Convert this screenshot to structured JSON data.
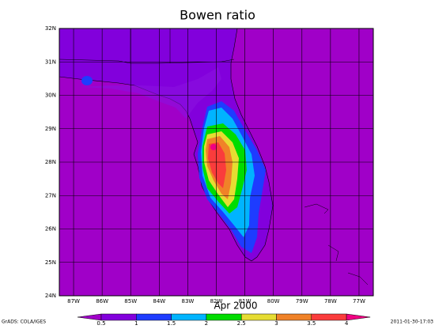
{
  "title": "Bowen ratio",
  "time_label": "Apr 2000",
  "credit": "GrADS: COLA/IGES",
  "timestamp": "2011-01-30-17:03",
  "map": {
    "xlim": [
      -87.5,
      -76.5
    ],
    "ylim": [
      24,
      32
    ],
    "xticks": [
      {
        "value": -87,
        "label": "87W"
      },
      {
        "value": -86,
        "label": "86W"
      },
      {
        "value": -85,
        "label": "85W"
      },
      {
        "value": -84,
        "label": "84W"
      },
      {
        "value": -83,
        "label": "83W"
      },
      {
        "value": -82,
        "label": "82W"
      },
      {
        "value": -81,
        "label": "81W"
      },
      {
        "value": -80,
        "label": "80W"
      },
      {
        "value": -79,
        "label": "79W"
      },
      {
        "value": -78,
        "label": "78W"
      },
      {
        "value": -77,
        "label": "77W"
      }
    ],
    "yticks": [
      {
        "value": 24,
        "label": "24N"
      },
      {
        "value": 25,
        "label": "25N"
      },
      {
        "value": 26,
        "label": "26N"
      },
      {
        "value": 27,
        "label": "27N"
      },
      {
        "value": 28,
        "label": "28N"
      },
      {
        "value": 29,
        "label": "29N"
      },
      {
        "value": 30,
        "label": "30N"
      },
      {
        "value": 31,
        "label": "31N"
      },
      {
        "value": 32,
        "label": "32N"
      }
    ],
    "grid": true
  },
  "colorbar": {
    "levels": [
      0.5,
      1,
      1.5,
      2,
      2.5,
      3,
      3.5,
      4
    ],
    "colors": [
      "#a000c8",
      "#8200dc",
      "#1e3cff",
      "#00b4ff",
      "#00dc00",
      "#e6dc32",
      "#f08228",
      "#fa3c3c",
      "#f00082"
    ]
  }
}
